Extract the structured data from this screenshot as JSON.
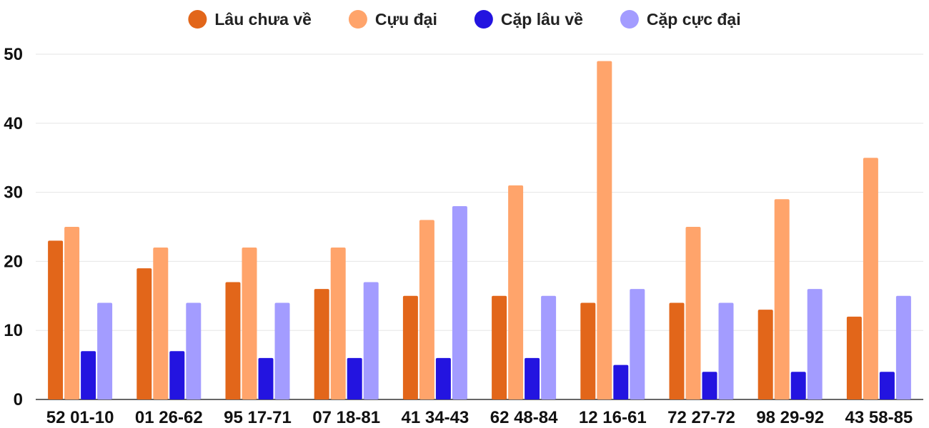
{
  "chart_data": {
    "type": "bar",
    "title": "",
    "xlabel": "",
    "ylabel": "",
    "ylim": [
      0,
      50
    ],
    "yticks": [
      0,
      10,
      20,
      30,
      40,
      50
    ],
    "grid": true,
    "legend_position": "top-center",
    "categories": [
      "52 01-10",
      "01 26-62",
      "95 17-71",
      "07 18-81",
      "41 34-43",
      "62 48-84",
      "12 16-61",
      "72 27-72",
      "98 29-92",
      "43 58-85"
    ],
    "series": [
      {
        "name": "Lâu chưa về",
        "color": "#e2661a",
        "values": [
          23,
          19,
          17,
          16,
          15,
          15,
          14,
          14,
          13,
          12
        ]
      },
      {
        "name": "Cựu đại",
        "color": "#ffa46b",
        "values": [
          25,
          22,
          22,
          22,
          26,
          31,
          49,
          25,
          29,
          35
        ]
      },
      {
        "name": "Cặp lâu về",
        "color": "#2314e0",
        "values": [
          7,
          7,
          6,
          6,
          6,
          6,
          5,
          4,
          4,
          4
        ]
      },
      {
        "name": "Cặp cực đại",
        "color": "#a39cff",
        "values": [
          14,
          14,
          14,
          17,
          28,
          15,
          16,
          14,
          16,
          15
        ]
      }
    ]
  }
}
